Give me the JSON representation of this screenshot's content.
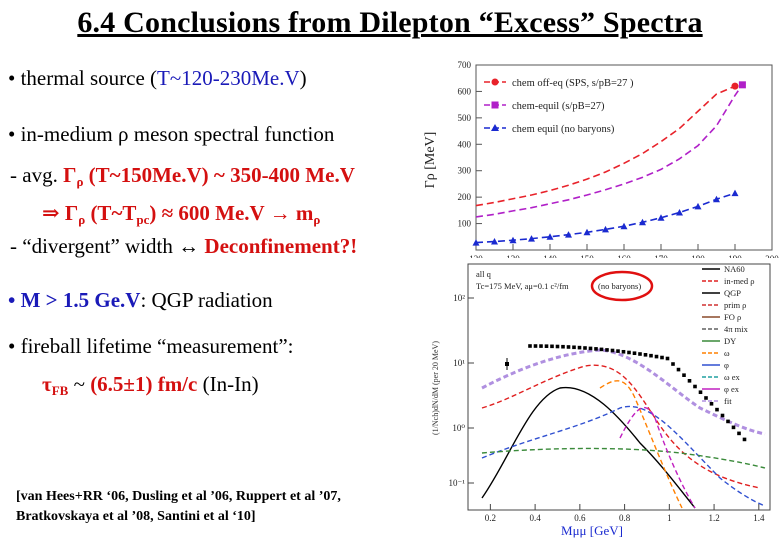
{
  "slide": {
    "title": "6.4  Conclusions from Dilepton “Excess” Spectra",
    "bullets": {
      "b1_pre": "• thermal source (",
      "b1_val": "T~120-230Me.V",
      "b1_post": ")",
      "b2_pre": "•  in-medium ",
      "b2_rho": "ρ",
      "b2_post": " meson spectral function",
      "b3_a": " - avg. ",
      "b3_gamma": "Γ",
      "b3_sub": "ρ",
      "b3_b": " (T~150Me.V) ~ 350-400 Me.V",
      "b4_a": "⇒  Γ",
      "b4_sub": "ρ",
      "b4_b": " (T~T",
      "b4_sub2": "pc",
      "b4_c": ") ≈ 600 Me.V  →  m",
      "b4_sub3": "ρ",
      "b5_a": " - “divergent” width ↔ ",
      "b5_b": "Deconfinement?!",
      "b6_a": "•  M > 1.5 Ge.V",
      "b6_b": ": QGP radiation",
      "b7": "• fireball lifetime “measurement”:",
      "b8_tau": "τ",
      "b8_sub": "FB",
      "b8_a": " ~ ",
      "b8_b": "(6.5±1) fm/c",
      "b8_c": " (In-In)"
    },
    "refs": {
      "line1": "[van Hees+RR ‘06, Dusling et al ’06, Ruppert et al ’07,",
      "line2": "Bratkovskaya et al ’08, Santini et al ‘10]"
    }
  },
  "chart_data": [
    {
      "type": "line",
      "ylabel": "Γρ [MeV]",
      "xlim": [
        120,
        200
      ],
      "ylim": [
        0,
        700
      ],
      "x_ticks": [
        "120",
        "130",
        "140",
        "150",
        "160",
        "170",
        "180",
        "190",
        "200"
      ],
      "y_ticks": [
        "100",
        "200",
        "300",
        "400",
        "500",
        "600",
        "700"
      ],
      "colors": {
        "chem off-eq": "#e8222a",
        "chem-equil (s/pB=27)": "#b020c8",
        "chem equil (no baryons)": "#1a2ad0"
      },
      "series": [
        {
          "name": "chem off-eq (SPS, s/pB=27 )",
          "x": [
            120,
            125,
            130,
            135,
            140,
            145,
            150,
            155,
            160,
            165,
            170,
            175,
            180,
            185,
            190
          ],
          "values": [
            168,
            180,
            194,
            208,
            225,
            245,
            268,
            295,
            328,
            365,
            410,
            460,
            525,
            590,
            620
          ]
        },
        {
          "name": "chem-equil (s/pB=27)",
          "x": [
            120,
            125,
            130,
            135,
            140,
            145,
            150,
            155,
            160,
            165,
            170,
            175,
            180,
            185,
            190,
            192
          ],
          "values": [
            125,
            135,
            148,
            160,
            175,
            190,
            208,
            228,
            250,
            275,
            305,
            345,
            395,
            470,
            585,
            625
          ]
        },
        {
          "name": "chem equil  (no baryons)",
          "x": [
            120,
            125,
            130,
            135,
            140,
            145,
            150,
            155,
            160,
            165,
            170,
            175,
            180,
            185,
            190
          ],
          "values": [
            28,
            32,
            37,
            43,
            50,
            58,
            67,
            78,
            90,
            105,
            122,
            142,
            165,
            192,
            215
          ]
        }
      ]
    },
    {
      "type": "line",
      "xlabel": "Mμμ [GeV]",
      "log_y": true,
      "annotation": [
        "all q",
        "Tc=175 MeV, aμ=0.1 c²/fm",
        "(no baryons)"
      ],
      "x_ticks": [
        "0.2",
        "0.4",
        "0.6",
        "0.8",
        "1",
        "1.2",
        "1.4"
      ],
      "y_ticks": [
        "10²",
        "10¹",
        "10⁰",
        "10⁻¹"
      ],
      "legend": [
        "NA60",
        "in-med ρ",
        "QGP",
        "prim ρ",
        "FO ρ",
        "4π mix",
        "DY",
        "ω",
        "φ",
        "ω ex",
        "φ ex",
        "fit"
      ],
      "legend_colors": [
        "#000000",
        "#e02020",
        "#000000",
        "#d03030",
        "#8a4a2a",
        "#606060",
        "#3a8a3a",
        "#ff8000",
        "#3050d0",
        "#20a0a0",
        "#c020c0",
        "#b090e0"
      ]
    }
  ]
}
